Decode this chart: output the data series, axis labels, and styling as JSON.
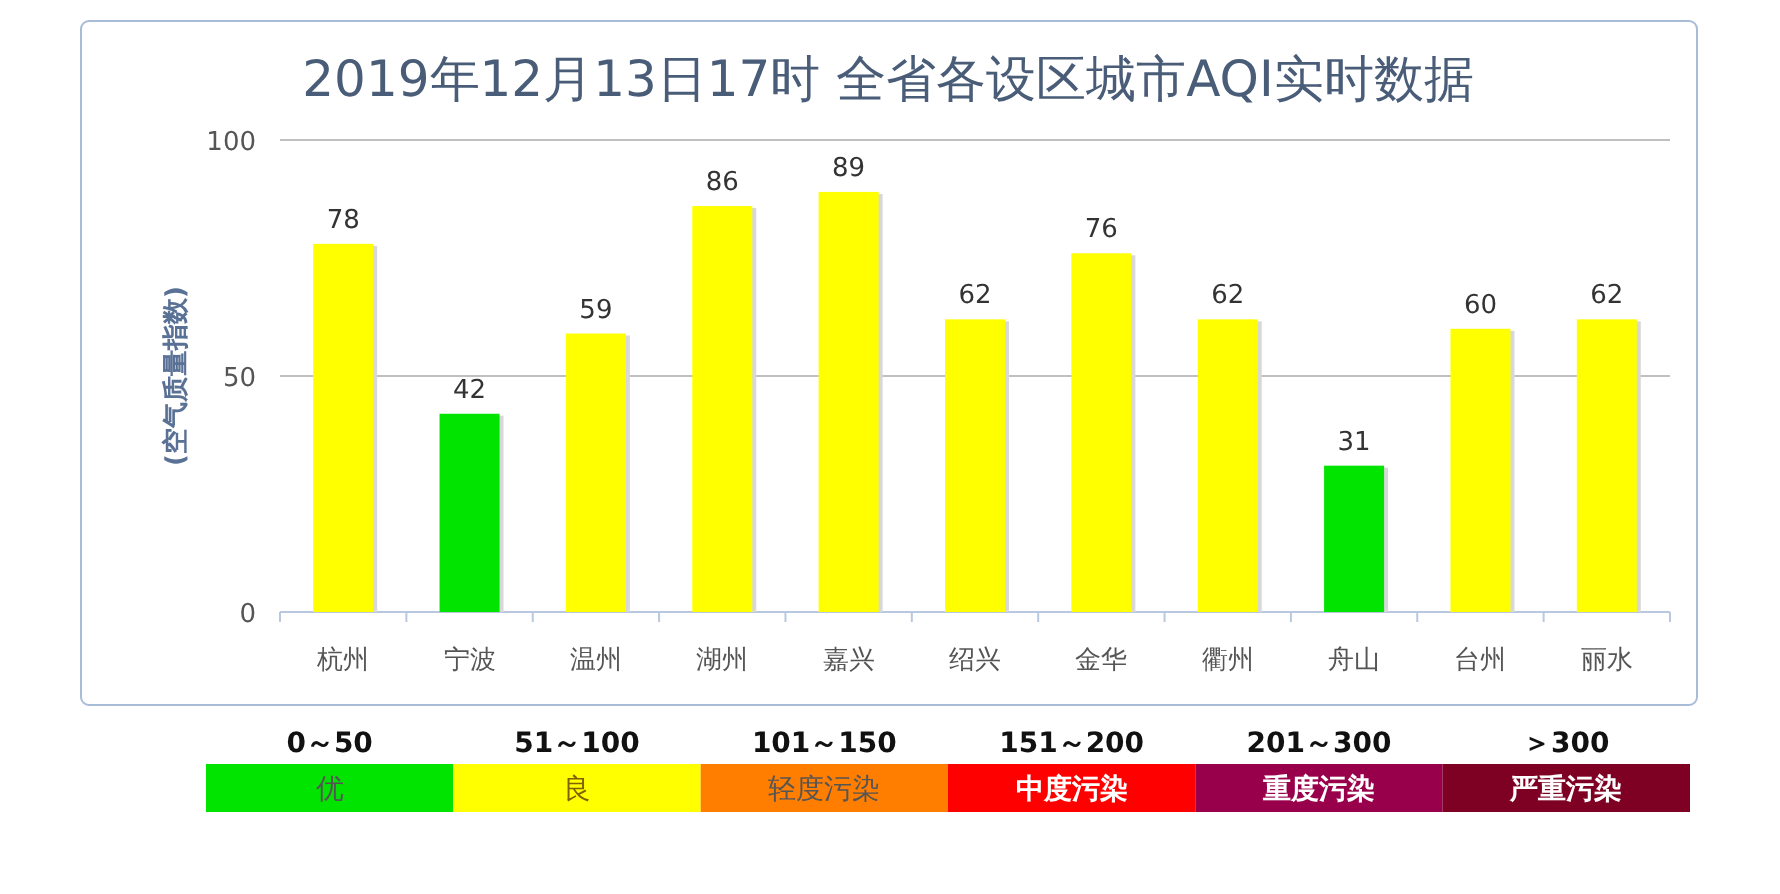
{
  "chart_data": [
    {
      "type": "bar",
      "title": "2019年12月13日17时 全省各设区城市AQI实时数据",
      "ylabel": "(空气质量指数)",
      "categories": [
        "杭州",
        "宁波",
        "温州",
        "湖州",
        "嘉兴",
        "绍兴",
        "金华",
        "衢州",
        "舟山",
        "台州",
        "丽水"
      ],
      "values": [
        78,
        42,
        59,
        86,
        89,
        62,
        76,
        62,
        31,
        60,
        62
      ],
      "colors": [
        "#ffff00",
        "#00e400",
        "#ffff00",
        "#ffff00",
        "#ffff00",
        "#ffff00",
        "#ffff00",
        "#ffff00",
        "#00e400",
        "#ffff00",
        "#ffff00"
      ],
      "ylim": [
        0,
        100
      ],
      "yticks": [
        0,
        50,
        100
      ],
      "grid": "y",
      "data_labels": true
    },
    {
      "type": "other",
      "categories": [
        "优",
        "良",
        "轻度污染",
        "中度污染",
        "重度污染",
        "严重污染"
      ],
      "annotations": [
        "0～50",
        "51～100",
        "101～150",
        "151～200",
        "201～300",
        "＞300"
      ],
      "colors": [
        "#00e400",
        "#ffff00",
        "#ff7e00",
        "#ff0000",
        "#99004c",
        "#7e0023"
      ]
    }
  ]
}
